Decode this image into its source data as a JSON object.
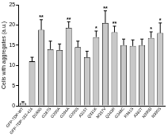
{
  "chart_data": {
    "type": "bar",
    "y_label": "Cells with aggregates (a.u.)",
    "categories": [
      "GFP-TDP-WT",
      "GFP-TDP-182-414",
      "D169G",
      "G287S",
      "G290A",
      "G294A",
      "G295S",
      "A315T",
      "Q331K",
      "M337V",
      "Q343R",
      "G348C",
      "R361S",
      "A382T",
      "N390D",
      "N390S"
    ],
    "values": [
      0.7,
      11,
      18.8,
      14,
      13.8,
      19.3,
      14.5,
      12,
      17,
      20.5,
      18.2,
      15,
      14.8,
      15,
      16.8,
      18
    ],
    "errors": [
      0.3,
      1,
      2.5,
      2,
      1.5,
      1.5,
      1.5,
      1.5,
      1.5,
      3,
      1.5,
      1.5,
      1.5,
      1.5,
      1.5,
      2.5
    ],
    "annotations": [
      null,
      null,
      "**",
      null,
      null,
      "**",
      null,
      null,
      "*",
      "**",
      "**",
      null,
      null,
      null,
      "*",
      "*"
    ],
    "color": "#c8c8c8",
    "ylim": [
      0,
      25
    ],
    "yticks": [
      0,
      5,
      10,
      15,
      20,
      25
    ],
    "grid": false
  }
}
